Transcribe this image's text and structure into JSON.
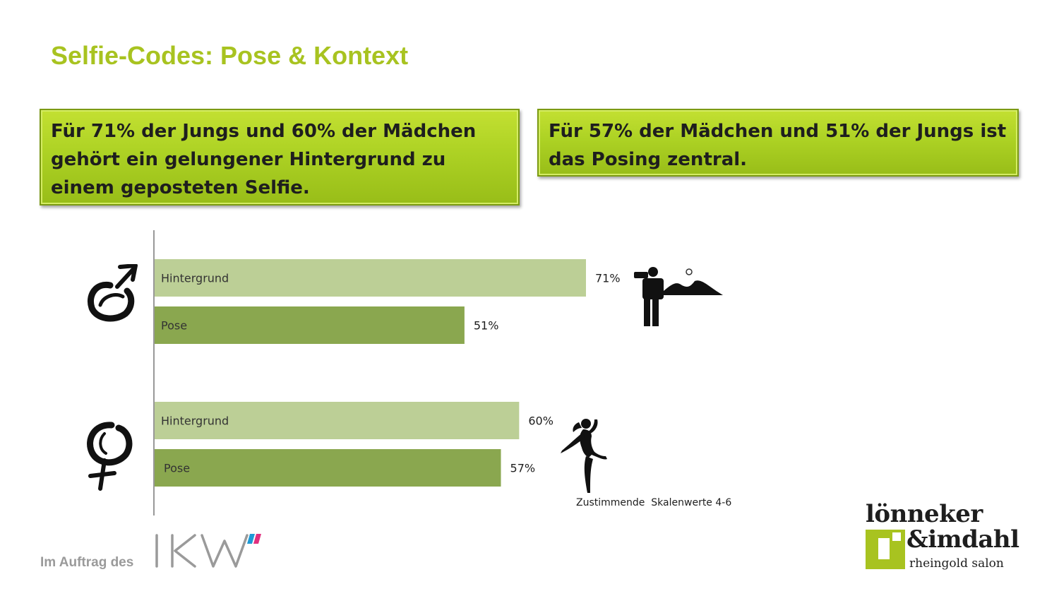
{
  "title": "Selfie-Codes: Pose & Kontext",
  "callouts": {
    "left": "Für 71% der Jungs und 60% der Mädchen gehört ein gelungener Hintergrund zu einem geposteten Selfie.",
    "right": "Für 57% der Mädchen und 51% der Jungs ist das Posing zentral."
  },
  "chart_data": {
    "type": "bar",
    "orientation": "horizontal",
    "groups": [
      {
        "icon": "male-symbol-icon",
        "bars": [
          {
            "label": "Hintergrund",
            "value": 71,
            "value_label": "71%",
            "color": "#bccf96"
          },
          {
            "label": "Pose",
            "value": 51,
            "value_label": "51%",
            "color": "#8aa74f"
          }
        ]
      },
      {
        "icon": "female-symbol-icon",
        "bars": [
          {
            "label": "Hintergrund",
            "value": 60,
            "value_label": "60%",
            "color": "#bccf96"
          },
          {
            "label": "Pose",
            "value": 57,
            "value_label": "57%",
            "color": "#8aa74f"
          }
        ]
      }
    ],
    "xlim": [
      0,
      100
    ],
    "unit": "%"
  },
  "footnote": "Zustimmende  Skalenwerte 4-6",
  "footer": {
    "commission_text": "Im Auftrag des",
    "ikw_logo_text": "IKW",
    "partner_logo": {
      "line1": "lönneker",
      "line2": "&imdahl",
      "line3": "rheingold salon"
    }
  },
  "colors": {
    "title": "#a8c320",
    "callout": "#add224",
    "bar_light": "#bccf96",
    "bar_dark": "#8aa74f",
    "logo_green": "#a8c320"
  }
}
